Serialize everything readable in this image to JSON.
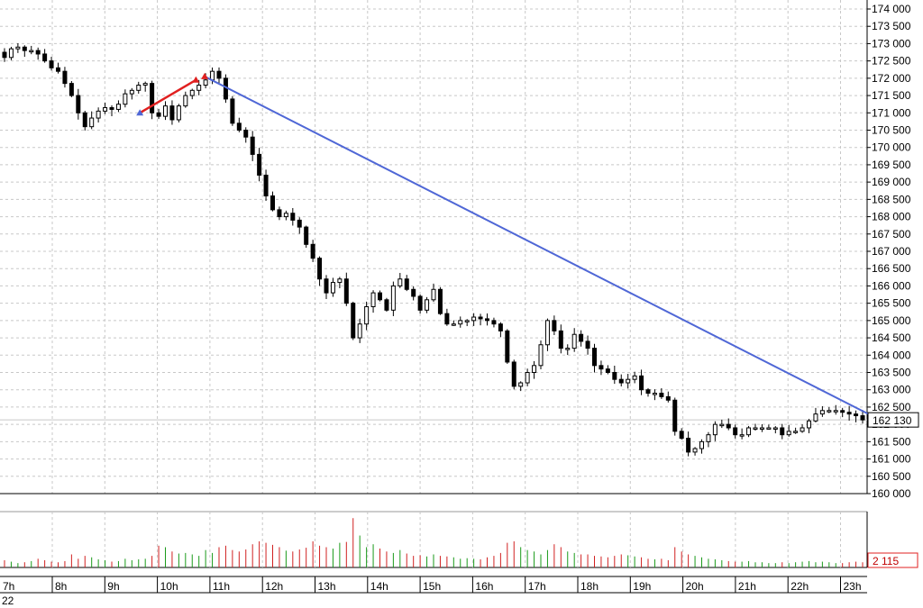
{
  "chart_data": [
    {
      "type": "candlestick",
      "x_labels": [
        "7h",
        "8h",
        "9h",
        "10h",
        "11h",
        "12h",
        "13h",
        "14h",
        "15h",
        "16h",
        "17h",
        "18h",
        "19h",
        "20h",
        "21h",
        "22h",
        "23h"
      ],
      "date_label": "22",
      "y_ticks": [
        "160 000",
        "160 500",
        "161 000",
        "161 500",
        "162 000",
        "162 500",
        "163 000",
        "163 500",
        "164 000",
        "164 500",
        "165 000",
        "165 500",
        "166 000",
        "166 500",
        "167 000",
        "167 500",
        "168 000",
        "168 500",
        "169 000",
        "169 500",
        "170 000",
        "170 500",
        "171 000",
        "171 500",
        "172 000",
        "172 500",
        "173 000",
        "173 500",
        "174 000"
      ],
      "ylim": [
        160000,
        174000
      ],
      "grid": true,
      "last_price": 162130,
      "last_price_label": "162 130",
      "colors": {
        "candle": "#000000",
        "trendline": "#4f67d6",
        "short_line": "#e02020",
        "current_line": "#c8c8c8"
      },
      "trendlines": [
        {
          "from": {
            "x": "10h54",
            "y": 172050
          },
          "to": {
            "x": "23h45",
            "y": 162130
          }
        },
        {
          "from": {
            "x": "9h40",
            "y": 171000
          },
          "to": {
            "x": "10h44",
            "y": 171950
          }
        }
      ],
      "closes": [
        172600,
        172850,
        172900,
        172800,
        172800,
        172700,
        172500,
        172300,
        172200,
        171850,
        171500,
        171000,
        170600,
        170850,
        171050,
        171150,
        171100,
        171250,
        171550,
        171650,
        171800,
        171850,
        171000,
        170900,
        171200,
        170800,
        171200,
        171500,
        171650,
        171800,
        171950,
        172200,
        172000,
        171400,
        170700,
        170500,
        170300,
        169800,
        169200,
        168600,
        168200,
        168000,
        168100,
        167900,
        167700,
        167200,
        166800,
        166200,
        165800,
        166100,
        166200,
        165500,
        164500,
        164900,
        165400,
        165800,
        165600,
        165300,
        166000,
        166200,
        165900,
        165700,
        165300,
        165600,
        165900,
        165200,
        164900,
        164900,
        165000,
        165000,
        165100,
        165050,
        165000,
        164900,
        164700,
        163800,
        163100,
        163200,
        163500,
        163700,
        164300,
        165000,
        164700,
        164200,
        164200,
        164600,
        164400,
        164200,
        163700,
        163600,
        163500,
        163300,
        163200,
        163300,
        163400,
        163000,
        162900,
        162900,
        162800,
        162700,
        161800,
        161600,
        161200,
        161300,
        161500,
        161700,
        162000,
        162000,
        161900,
        161700,
        161700,
        161900,
        161900,
        161900,
        161900,
        161900,
        161700,
        161800,
        161800,
        161900,
        162100,
        162300,
        162400,
        162400,
        162400,
        162350,
        162300,
        162250,
        162130
      ],
      "volume_label": "2 115",
      "volumes": [
        25,
        20,
        15,
        18,
        22,
        30,
        25,
        20,
        18,
        22,
        45,
        30,
        40,
        35,
        28,
        25,
        20,
        22,
        30,
        25,
        28,
        30,
        40,
        75,
        70,
        55,
        48,
        50,
        45,
        40,
        60,
        50,
        70,
        75,
        60,
        55,
        62,
        80,
        90,
        85,
        78,
        70,
        58,
        55,
        62,
        68,
        90,
        75,
        70,
        65,
        85,
        88,
        170,
        110,
        70,
        80,
        65,
        55,
        50,
        60,
        48,
        40,
        42,
        38,
        45,
        40,
        38,
        35,
        30,
        32,
        30,
        28,
        35,
        40,
        50,
        85,
        90,
        70,
        60,
        55,
        45,
        60,
        80,
        70,
        55,
        50,
        45,
        45,
        40,
        38,
        35,
        40,
        45,
        42,
        38,
        35,
        30,
        28,
        30,
        25,
        70,
        55,
        45,
        40,
        35,
        30,
        28,
        25,
        22,
        20,
        20,
        22,
        18,
        18,
        15,
        15,
        18,
        15,
        18,
        20,
        22,
        18,
        20,
        18,
        15,
        15,
        18,
        20,
        18
      ]
    }
  ]
}
